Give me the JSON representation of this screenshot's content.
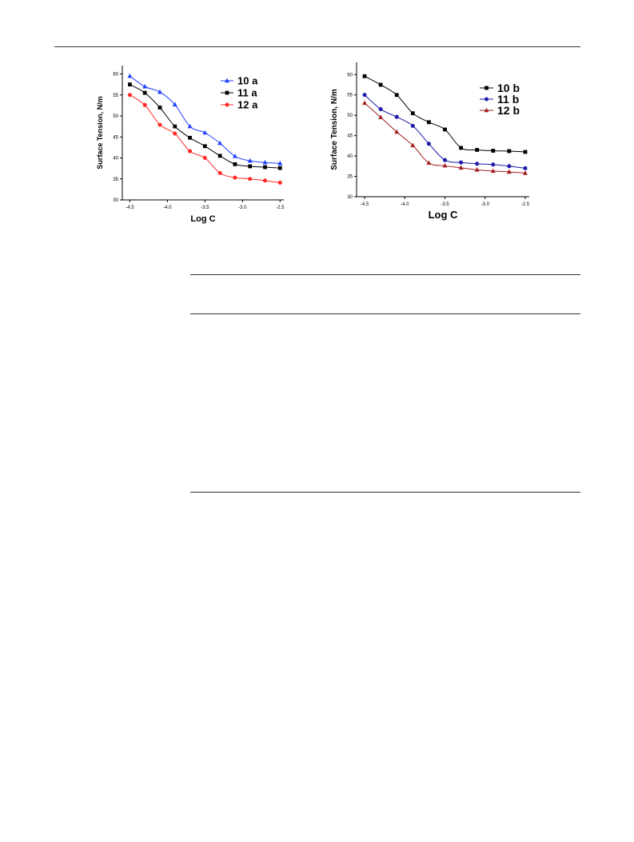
{
  "chart_data": [
    {
      "type": "line",
      "xlabel": "Log C",
      "ylabel": "Surface Tension, N/m",
      "xlim": [
        -4.6,
        -2.45
      ],
      "ylim": [
        30,
        62
      ],
      "xticks": [
        -4.5,
        -4.0,
        -3.5,
        -3.0,
        -2.5
      ],
      "xtick_labels": [
        "-4.5",
        "-4.0",
        "-3.5",
        "-3.0",
        "-2.5"
      ],
      "yticks": [
        30,
        35,
        40,
        45,
        50,
        55,
        60
      ],
      "ytick_labels": [
        "30",
        "35",
        "40",
        "45",
        "50",
        "55",
        "60"
      ],
      "grid": false,
      "legend_position": "top-right",
      "series": [
        {
          "name": "10 a",
          "color": "#1f3fff",
          "marker": "triangle",
          "x": [
            -4.5,
            -4.3,
            -4.1,
            -3.9,
            -3.7,
            -3.5,
            -3.3,
            -3.1,
            -2.9,
            -2.7,
            -2.5
          ],
          "y": [
            59.5,
            57.0,
            55.7,
            52.7,
            47.5,
            46.0,
            43.5,
            40.4,
            39.3,
            38.9,
            38.7
          ]
        },
        {
          "name": "11 a",
          "color": "#000000",
          "marker": "square",
          "x": [
            -4.5,
            -4.3,
            -4.1,
            -3.9,
            -3.7,
            -3.5,
            -3.3,
            -3.1,
            -2.9,
            -2.7,
            -2.5
          ],
          "y": [
            57.5,
            55.5,
            52.0,
            47.5,
            44.8,
            42.8,
            40.5,
            38.5,
            38.0,
            37.8,
            37.6
          ]
        },
        {
          "name": "12 a",
          "color": "#ff2a2a",
          "marker": "circle",
          "x": [
            -4.5,
            -4.3,
            -4.1,
            -3.9,
            -3.7,
            -3.5,
            -3.3,
            -3.1,
            -2.9,
            -2.7,
            -2.5
          ],
          "y": [
            55.0,
            52.6,
            47.9,
            45.8,
            41.6,
            40.0,
            36.4,
            35.3,
            35.0,
            34.6,
            34.1
          ]
        }
      ]
    },
    {
      "type": "line",
      "xlabel": "Log C",
      "ylabel": "Surface Tension, N/m",
      "xlim": [
        -4.6,
        -2.45
      ],
      "ylim": [
        30,
        63
      ],
      "xticks": [
        -4.5,
        -4.0,
        -3.5,
        -3.0,
        -2.5
      ],
      "xtick_labels": [
        "-4.5",
        "-4.0",
        "-3.5",
        "-3.0",
        "-2.5"
      ],
      "yticks": [
        30,
        35,
        40,
        45,
        50,
        55,
        60
      ],
      "ytick_labels": [
        "30",
        "35",
        "40",
        "45",
        "50",
        "55",
        "60"
      ],
      "grid": false,
      "legend_position": "top-right",
      "series": [
        {
          "name": "10 b",
          "color": "#000000",
          "marker": "square",
          "x": [
            -4.5,
            -4.3,
            -4.1,
            -3.9,
            -3.7,
            -3.5,
            -3.3,
            -3.1,
            -2.9,
            -2.7,
            -2.5
          ],
          "y": [
            59.6,
            57.5,
            55.0,
            50.5,
            48.3,
            46.5,
            42.0,
            41.5,
            41.3,
            41.2,
            41.0
          ]
        },
        {
          "name": "11 b",
          "color": "#1c1ca8",
          "marker": "circle",
          "x": [
            -4.5,
            -4.3,
            -4.1,
            -3.9,
            -3.7,
            -3.5,
            -3.3,
            -3.1,
            -2.9,
            -2.7,
            -2.5
          ],
          "y": [
            55.0,
            51.5,
            49.6,
            47.4,
            43.0,
            39.0,
            38.4,
            38.1,
            37.9,
            37.5,
            37.0
          ]
        },
        {
          "name": "12 b",
          "color": "#a31f1f",
          "marker": "triangle",
          "x": [
            -4.5,
            -4.3,
            -4.1,
            -3.9,
            -3.7,
            -3.5,
            -3.3,
            -3.1,
            -2.9,
            -2.7,
            -2.5
          ],
          "y": [
            53.0,
            49.5,
            45.9,
            42.6,
            38.3,
            37.6,
            37.1,
            36.6,
            36.3,
            36.1,
            35.8
          ]
        }
      ]
    }
  ]
}
